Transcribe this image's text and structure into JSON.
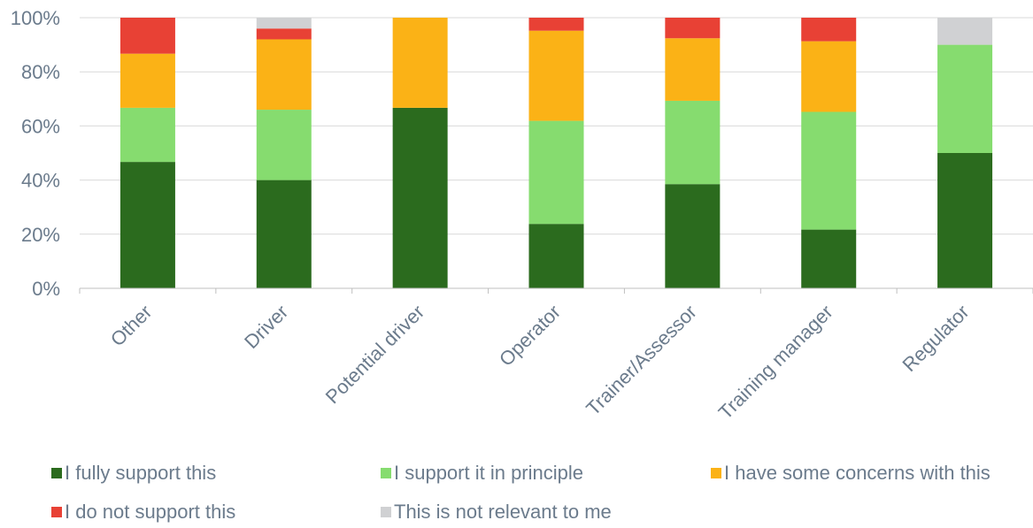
{
  "chart_data": {
    "type": "bar",
    "stacked": true,
    "percent": true,
    "categories": [
      "Other",
      "Driver",
      "Potential driver",
      "Operator",
      "Trainer/Assessor",
      "Training manager",
      "Regulator"
    ],
    "y_ticks": [
      "0%",
      "20%",
      "40%",
      "60%",
      "80%",
      "100%"
    ],
    "ylim": [
      0,
      100
    ],
    "grid": true,
    "legend_position": "bottom",
    "series": [
      {
        "name": "I fully support this",
        "color": "#2b6b1e",
        "values": [
          46.7,
          40,
          66.7,
          23.8,
          38.5,
          21.7,
          50
        ]
      },
      {
        "name": "I support it in principle",
        "color": "#86dc6f",
        "values": [
          20,
          26,
          0,
          38.1,
          30.8,
          43.5,
          40
        ]
      },
      {
        "name": "I have some concerns with this",
        "color": "#fbb216",
        "values": [
          20,
          26,
          33.3,
          33.3,
          23.1,
          26.1,
          0
        ]
      },
      {
        "name": "I do not support this",
        "color": "#e84135",
        "values": [
          13.3,
          4,
          0,
          4.8,
          7.6,
          8.7,
          0
        ]
      },
      {
        "name": "This is not relevant to me",
        "color": "#d0d1d3",
        "values": [
          0,
          4,
          0,
          0,
          0,
          0,
          10
        ]
      }
    ]
  }
}
